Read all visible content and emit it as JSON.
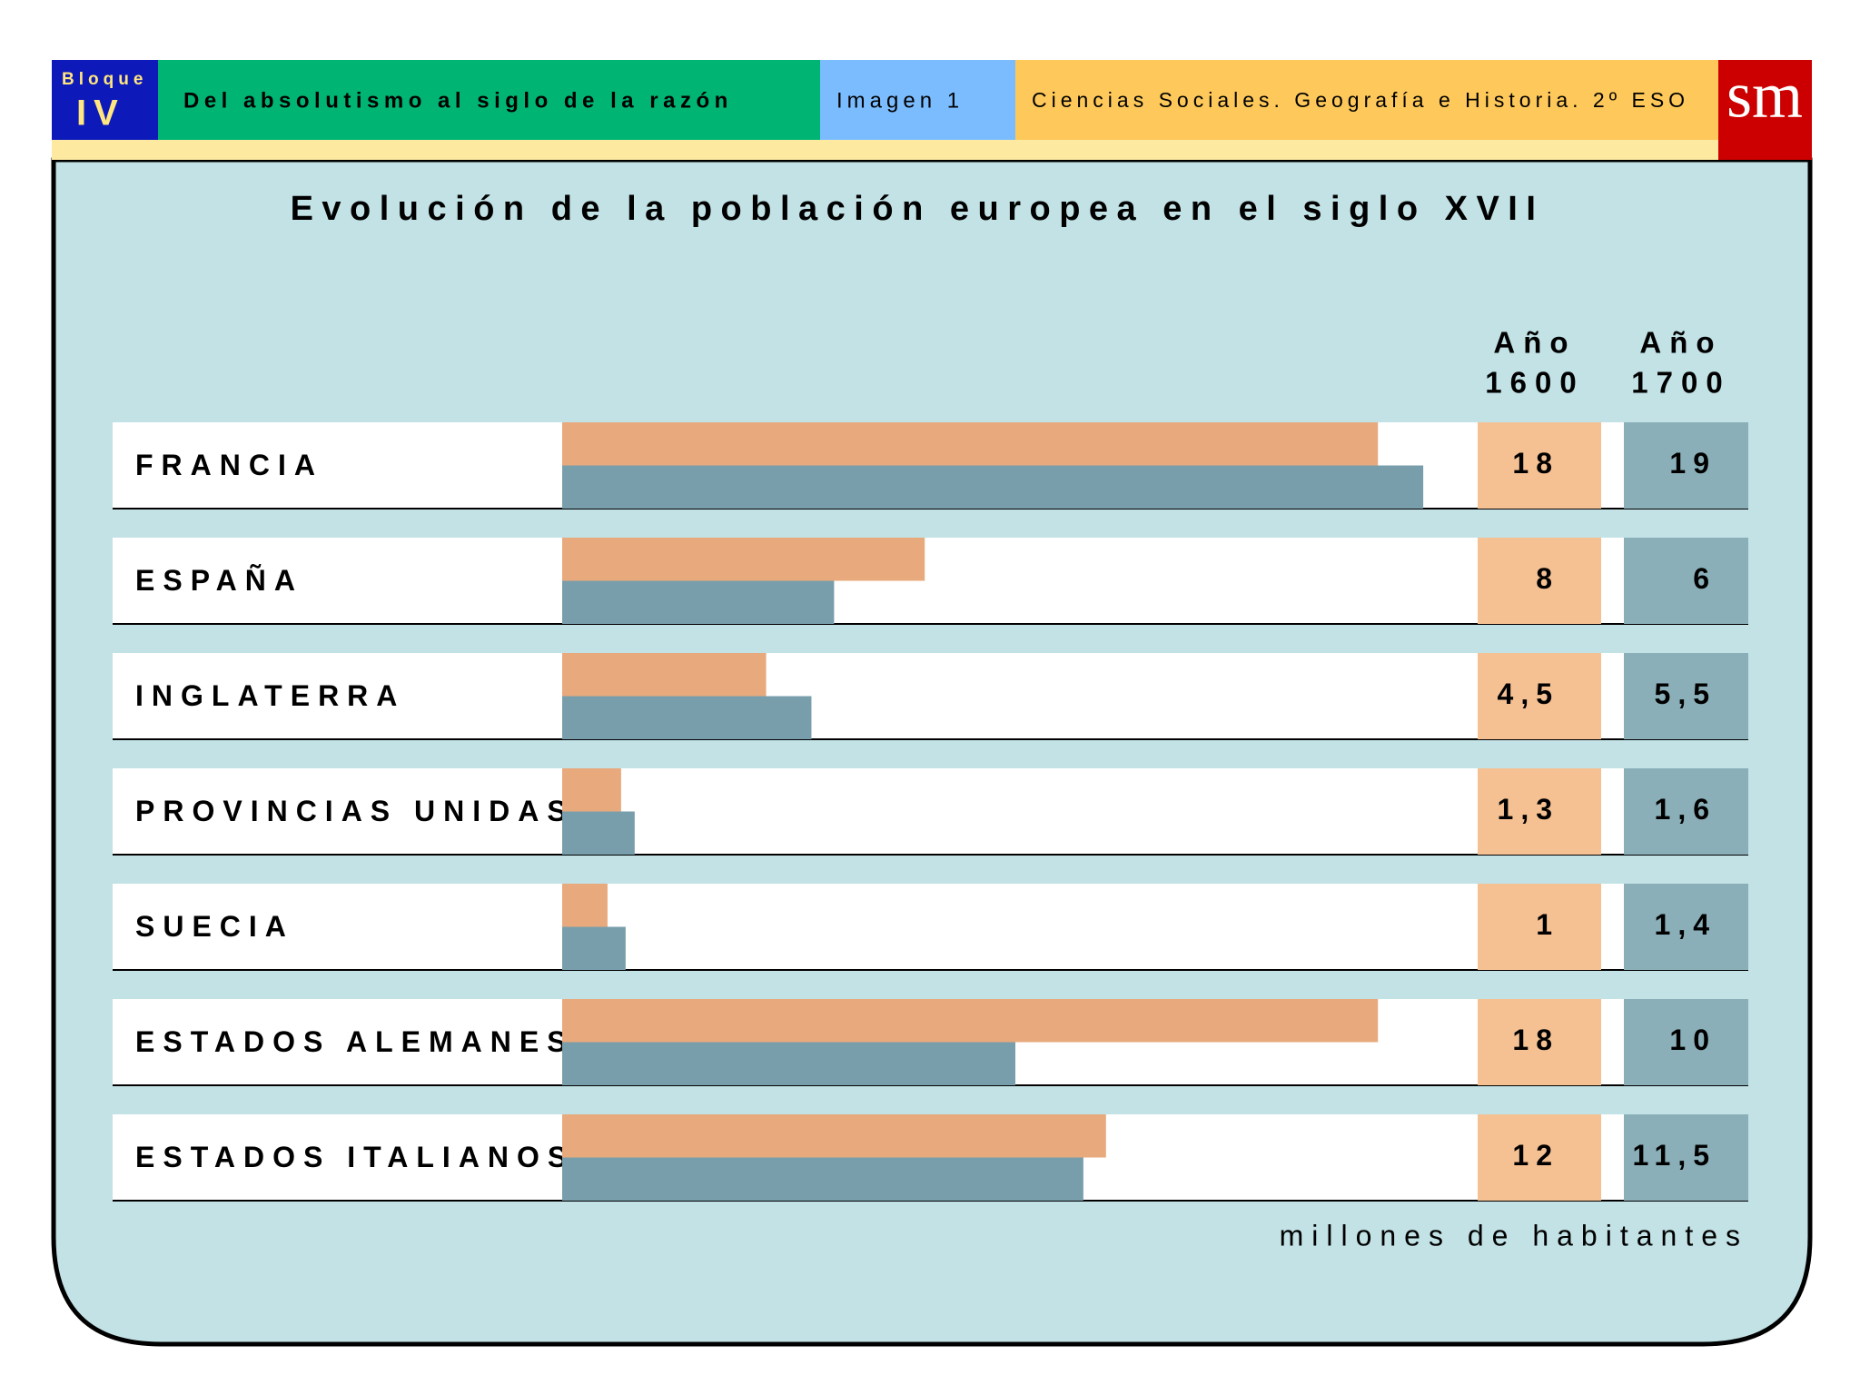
{
  "header": {
    "block_label": "Bloque",
    "block_number": "IV",
    "unit": "Del absolutismo al siglo de la razón",
    "image": "Imagen 1",
    "subject": "Ciencias Sociales. Geografía e Historia. 2º ESO",
    "logo": "sm"
  },
  "chart_data": {
    "type": "bar",
    "orientation": "horizontal",
    "title": "Evolución de la población europea en el siglo XVII",
    "categories": [
      "FRANCIA",
      "ESPAÑA",
      "INGLATERRA",
      "PROVINCIAS UNIDAS",
      "SUECIA",
      "ESTADOS ALEMANES",
      "ESTADOS ITALIANOS"
    ],
    "series": [
      {
        "name": [
          "Año",
          "1600"
        ],
        "color": "#e8a97c",
        "values": [
          18,
          8,
          4.5,
          1.3,
          1,
          18,
          12
        ],
        "value_labels": [
          "18",
          "8",
          "4,5",
          "1,3",
          "1",
          "18",
          "12"
        ]
      },
      {
        "name": [
          "Año",
          "1700"
        ],
        "color": "#789eab",
        "values": [
          19,
          6,
          5.5,
          1.6,
          1.4,
          10,
          11.5
        ],
        "value_labels": [
          "19",
          "6",
          "5,5",
          "1,6",
          "1,4",
          "10",
          "11,5"
        ]
      }
    ],
    "unit_note": "millones de habitantes"
  }
}
